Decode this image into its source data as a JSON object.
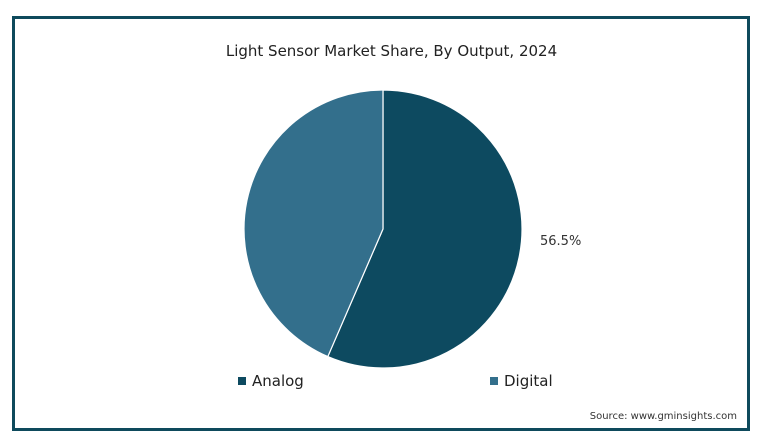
{
  "chart_data": {
    "type": "pie",
    "title": "Light Sensor Market Share, By Output, 2024",
    "slices": [
      {
        "name": "Analog",
        "value": 56.5,
        "color": "#0d4a60"
      },
      {
        "name": "Digital",
        "value": 43.5,
        "color": "#336f8c"
      }
    ],
    "data_labels": [
      "56.5%"
    ],
    "legend_position": "bottom"
  },
  "source": "Source: www.gminsights.com"
}
